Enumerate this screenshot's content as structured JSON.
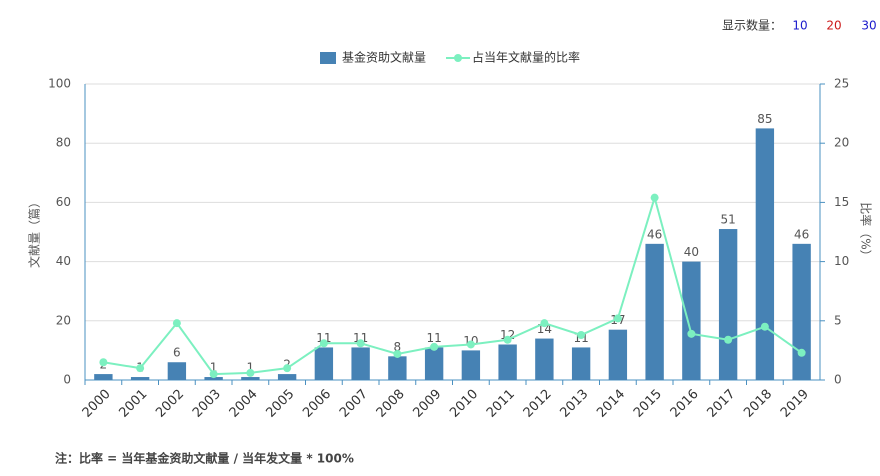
{
  "controls": {
    "label": "显示数量：",
    "options": [
      "10",
      "20",
      "30"
    ]
  },
  "chart_data": {
    "type": "bar-line",
    "categories": [
      "2000",
      "2001",
      "2002",
      "2003",
      "2004",
      "2005",
      "2006",
      "2007",
      "2008",
      "2009",
      "2010",
      "2011",
      "2012",
      "2013",
      "2014",
      "2015",
      "2016",
      "2017",
      "2018",
      "2019"
    ],
    "series": [
      {
        "name": "基金资助文献量",
        "type": "bar",
        "color": "#4682b4",
        "values": [
          2,
          1,
          6,
          1,
          1,
          2,
          11,
          11,
          8,
          11,
          10,
          12,
          14,
          11,
          17,
          46,
          40,
          51,
          85,
          46
        ],
        "show_labels": true
      },
      {
        "name": "占当年文献量的比率",
        "type": "line",
        "axis": "y2",
        "color": "#7cf0c0",
        "values": [
          1.5,
          1.0,
          4.8,
          0.5,
          0.6,
          1.0,
          3.1,
          3.1,
          2.2,
          2.8,
          3.0,
          3.4,
          4.8,
          3.8,
          5.2,
          15.4,
          3.9,
          3.4,
          4.5,
          2.3
        ]
      }
    ],
    "ylabel": "文献量（篇）",
    "y2label": "比率（%）",
    "ylim": [
      0,
      100
    ],
    "yticks": [
      0,
      20,
      40,
      60,
      80,
      100
    ],
    "y2lim": [
      0,
      25
    ],
    "y2ticks": [
      0,
      5,
      10,
      15,
      20,
      25
    ],
    "grid": true,
    "note": "注：比率 = 当年基金资助文献量 / 当年发文量 * 100%"
  }
}
